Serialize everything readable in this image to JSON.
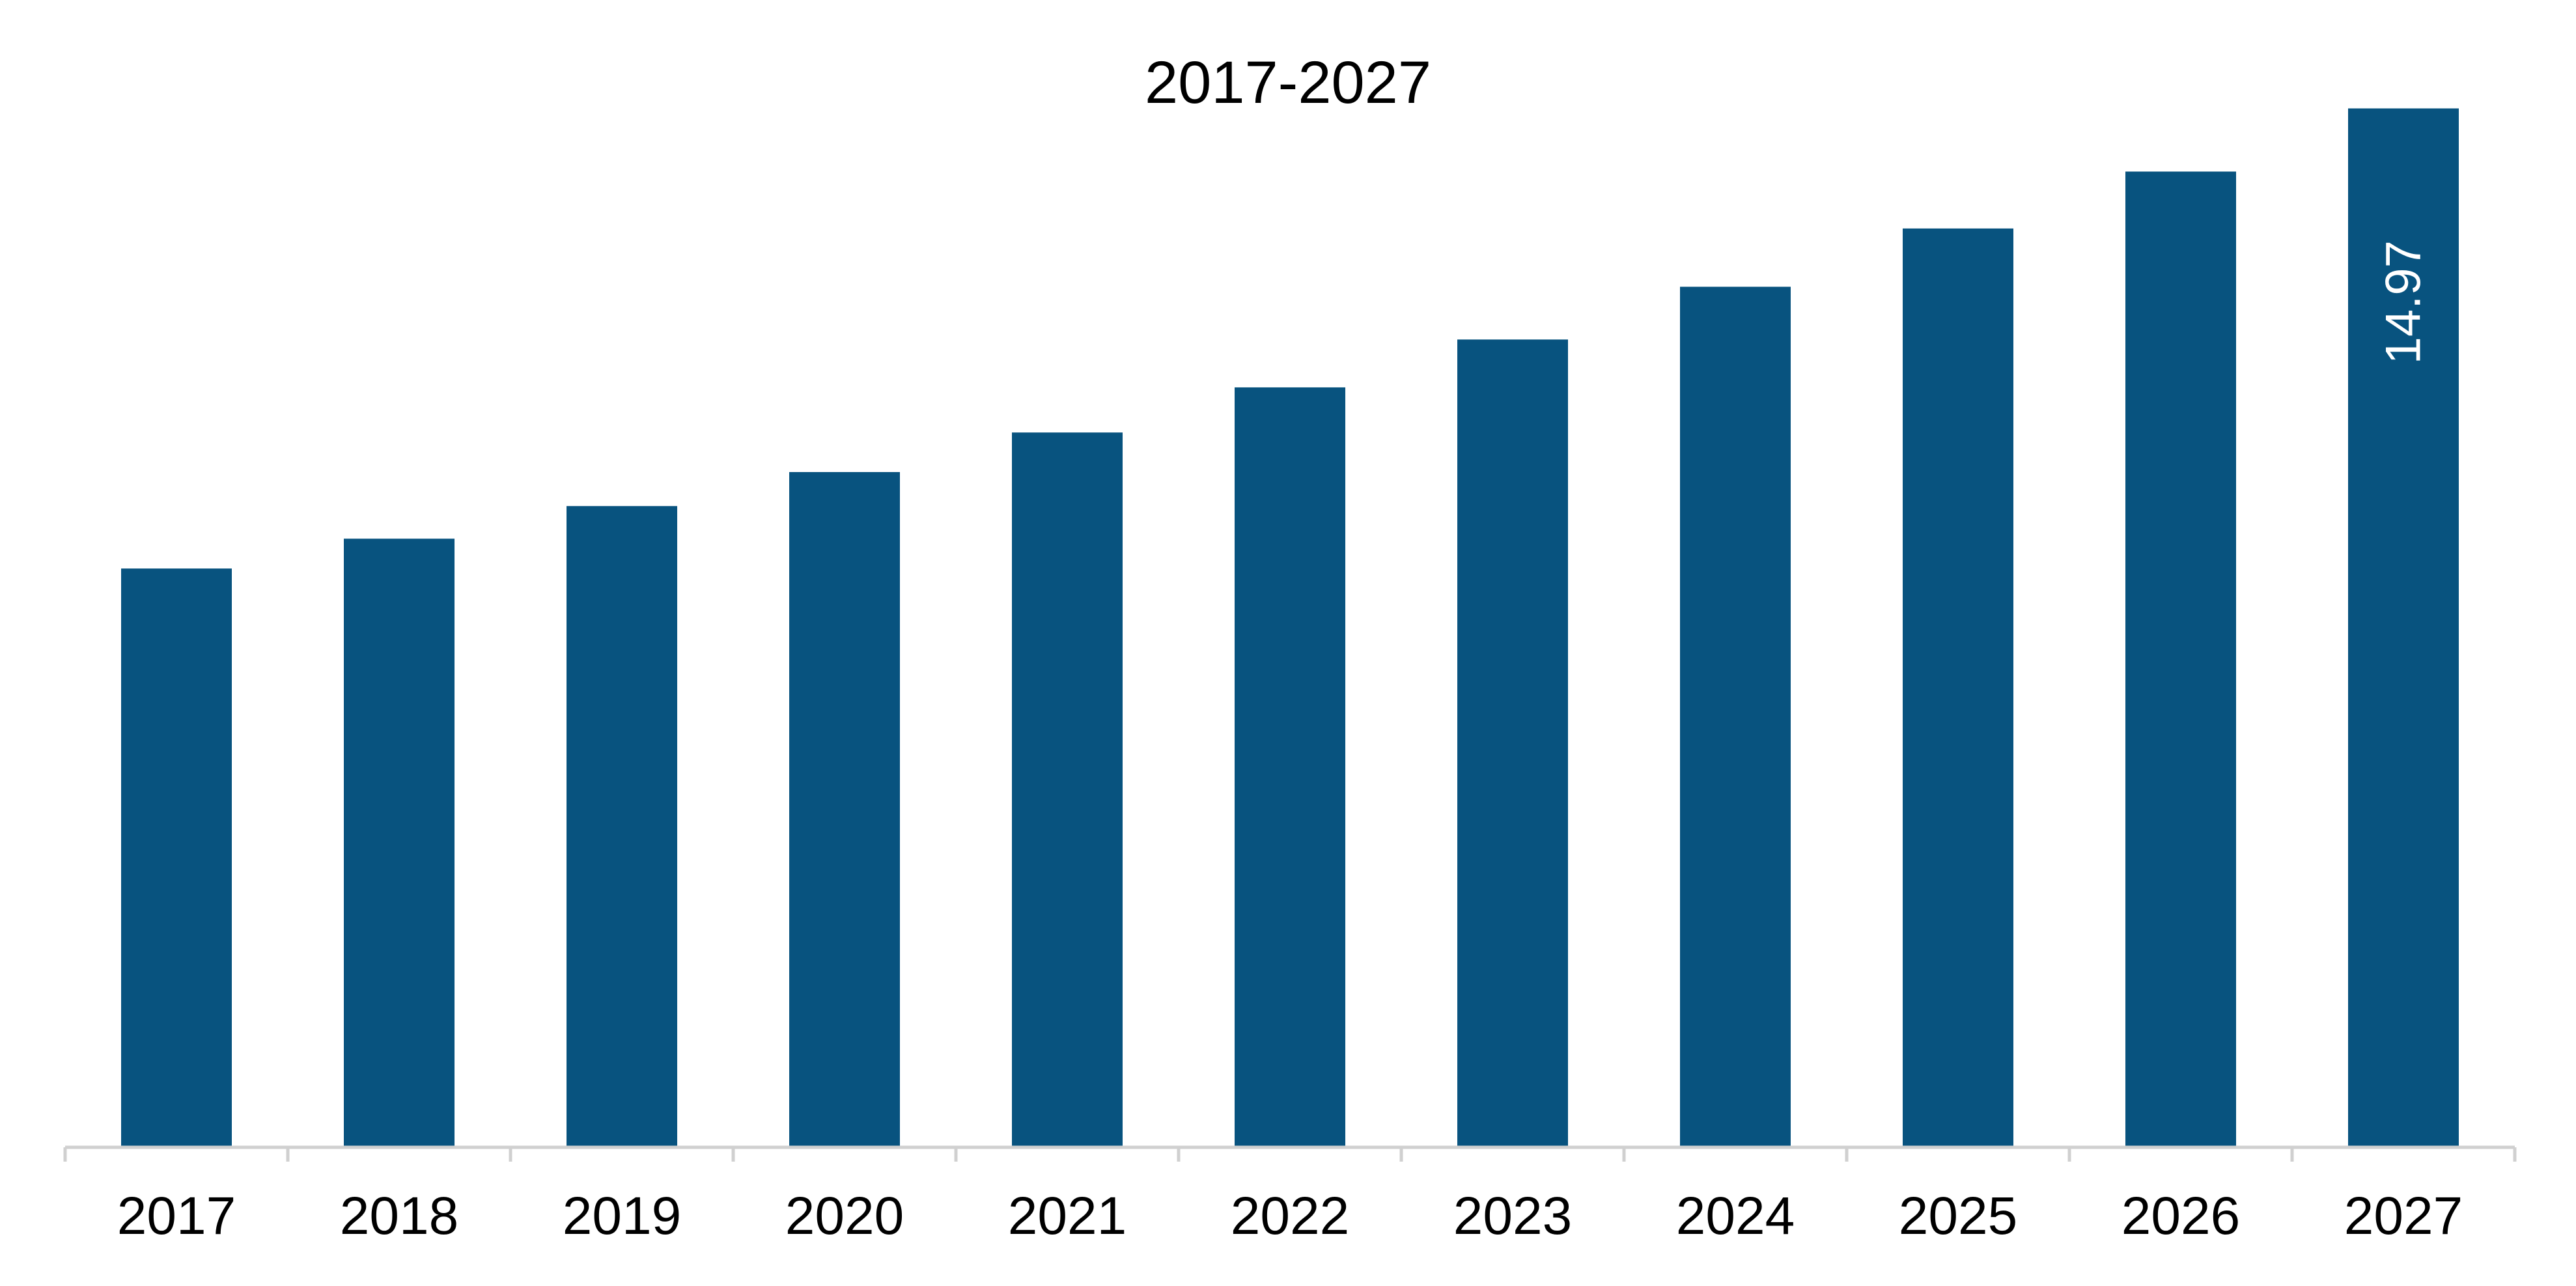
{
  "chart_data": {
    "type": "bar",
    "title": "2017-2027",
    "xlabel": "",
    "ylabel": "",
    "categories": [
      "2017",
      "2018",
      "2019",
      "2020",
      "2021",
      "2022",
      "2023",
      "2024",
      "2025",
      "2026",
      "2027"
    ],
    "series": [
      {
        "values": [
          8.34,
          8.77,
          9.24,
          9.73,
          10.3,
          10.95,
          11.64,
          12.4,
          13.24,
          14.06,
          14.97
        ],
        "color": "#08537f"
      }
    ],
    "data_labels": [
      {
        "category": "2027",
        "text": "14.97",
        "orientation": "vertical"
      }
    ],
    "ylim": [
      0,
      15.5
    ],
    "grid": false,
    "legend": "none",
    "colors": {
      "bar": "#08537f",
      "axis": "#d0d0d0",
      "data_label": "#ffffff"
    }
  }
}
